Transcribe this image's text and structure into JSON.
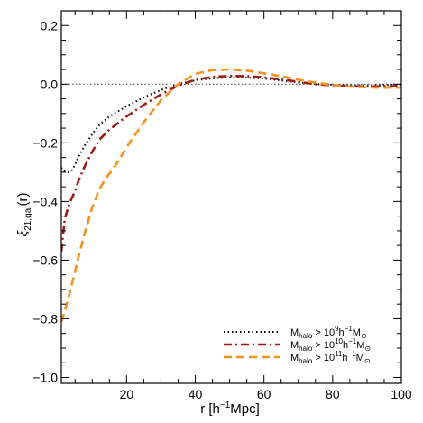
{
  "chart_data": {
    "type": "line",
    "xlabel": "r [h⁻¹Mpc]",
    "ylabel": "ξ21,gal(r)",
    "ylabel_symbol": "ξ",
    "ylabel_subscript": "21,gal",
    "ylabel_arg": "(r)",
    "xlim": [
      1,
      100
    ],
    "ylim": [
      -1.02,
      0.25
    ],
    "xticks": [
      20,
      40,
      60,
      80,
      100
    ],
    "yticks": [
      0.2,
      0.0,
      -0.2,
      -0.4,
      -0.6,
      -0.8,
      -1.0
    ],
    "ytick_labels": [
      "0.2",
      "0.0",
      "−0.2",
      "−0.4",
      "−0.6",
      "−0.8",
      "−1.0"
    ],
    "grid": false,
    "legend_position": "bottom-right",
    "reference_line": {
      "y": 0.0,
      "style": "dotted",
      "color": "#555555"
    },
    "series": [
      {
        "legend_label": "Mhalo > 10⁹h⁻¹M⊙",
        "color": "#000000",
        "dash": "dotted",
        "points": [
          [
            1,
            -0.285
          ],
          [
            2,
            -0.298
          ],
          [
            3,
            -0.3
          ],
          [
            4,
            -0.295
          ],
          [
            5,
            -0.275
          ],
          [
            6,
            -0.248
          ],
          [
            8,
            -0.205
          ],
          [
            10,
            -0.17
          ],
          [
            12,
            -0.14
          ],
          [
            15,
            -0.11
          ],
          [
            20,
            -0.075
          ],
          [
            25,
            -0.045
          ],
          [
            30,
            -0.02
          ],
          [
            35,
            0.0
          ],
          [
            40,
            0.013
          ],
          [
            45,
            0.02
          ],
          [
            50,
            0.023
          ],
          [
            55,
            0.022
          ],
          [
            60,
            0.019
          ],
          [
            65,
            0.013
          ],
          [
            70,
            0.006
          ],
          [
            75,
            0.0
          ],
          [
            80,
            -0.002
          ],
          [
            85,
            -0.004
          ],
          [
            90,
            -0.004
          ],
          [
            95,
            -0.003
          ],
          [
            100,
            -0.002
          ]
        ]
      },
      {
        "legend_label": "Mhalo > 10¹⁰h⁻¹M⊙",
        "color": "#a11a12",
        "dash": "dashdot",
        "points": [
          [
            1,
            -0.57
          ],
          [
            2,
            -0.46
          ],
          [
            3,
            -0.42
          ],
          [
            4,
            -0.39
          ],
          [
            5,
            -0.365
          ],
          [
            6,
            -0.33
          ],
          [
            8,
            -0.275
          ],
          [
            10,
            -0.23
          ],
          [
            12,
            -0.19
          ],
          [
            15,
            -0.155
          ],
          [
            20,
            -0.11
          ],
          [
            25,
            -0.07
          ],
          [
            30,
            -0.035
          ],
          [
            35,
            -0.005
          ],
          [
            40,
            0.015
          ],
          [
            45,
            0.025
          ],
          [
            50,
            0.028
          ],
          [
            55,
            0.027
          ],
          [
            60,
            0.023
          ],
          [
            65,
            0.016
          ],
          [
            70,
            0.008
          ],
          [
            75,
            0.0
          ],
          [
            80,
            -0.004
          ],
          [
            85,
            -0.007
          ],
          [
            90,
            -0.008
          ],
          [
            95,
            -0.007
          ],
          [
            100,
            -0.006
          ]
        ]
      },
      {
        "legend_label": "Mhalo > 10¹¹h⁻¹M⊙",
        "color": "#f5921e",
        "dash": "dashed",
        "points": [
          [
            1,
            -0.81
          ],
          [
            2,
            -0.775
          ],
          [
            3,
            -0.73
          ],
          [
            4,
            -0.685
          ],
          [
            5,
            -0.64
          ],
          [
            6,
            -0.59
          ],
          [
            8,
            -0.5
          ],
          [
            10,
            -0.42
          ],
          [
            12,
            -0.36
          ],
          [
            14,
            -0.32
          ],
          [
            16,
            -0.29
          ],
          [
            18,
            -0.255
          ],
          [
            20,
            -0.215
          ],
          [
            25,
            -0.13
          ],
          [
            30,
            -0.055
          ],
          [
            35,
            0.0
          ],
          [
            40,
            0.035
          ],
          [
            45,
            0.048
          ],
          [
            50,
            0.05
          ],
          [
            55,
            0.046
          ],
          [
            60,
            0.037
          ],
          [
            65,
            0.027
          ],
          [
            70,
            0.015
          ],
          [
            75,
            0.005
          ],
          [
            80,
            -0.003
          ],
          [
            85,
            -0.008
          ],
          [
            90,
            -0.011
          ],
          [
            95,
            -0.012
          ],
          [
            100,
            -0.012
          ]
        ]
      }
    ]
  },
  "legend": {
    "entries": [
      {
        "text": "M",
        "sub": "halo",
        "rel": " > 10",
        "exp": "9",
        "unit": "h",
        "unit_exp": "−1",
        "msun": "M",
        "msun_sub": "⊙"
      },
      {
        "text": "M",
        "sub": "halo",
        "rel": " > 10",
        "exp": "10",
        "unit": "h",
        "unit_exp": "−1",
        "msun": "M",
        "msun_sub": "⊙"
      },
      {
        "text": "M",
        "sub": "halo",
        "rel": " > 10",
        "exp": "11",
        "unit": "h",
        "unit_exp": "−1",
        "msun": "M",
        "msun_sub": "⊙"
      }
    ]
  },
  "axis_titles": {
    "x_main": "r [h",
    "x_exp": "−1",
    "x_unit": "Mpc]"
  }
}
